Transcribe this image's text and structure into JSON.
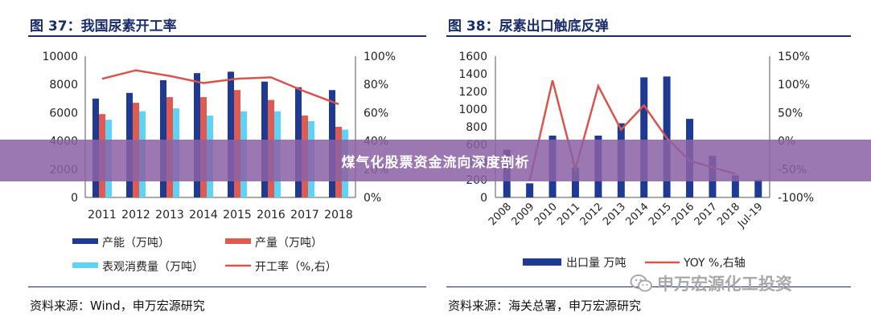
{
  "banner": {
    "text": "煤气化股票资金流向深度剖析"
  },
  "watermark": {
    "text": "申万宏源化工投资",
    "icon": "wechat-icon"
  },
  "colors": {
    "navy": "#1f3a93",
    "red": "#e05a4f",
    "cyan": "#5fd3f5",
    "line": "#d9534f",
    "header": "#1a2d6b"
  },
  "left": {
    "title": "图 37：我国尿素开工率",
    "source": "资料来源：Wind，申万宏源研究"
  },
  "right": {
    "title": "图 38：尿素出口触底反弹",
    "source": "资料来源：海关总署，申万宏源研究"
  },
  "chart_data": [
    {
      "type": "bar",
      "categories": [
        "2011",
        "2012",
        "2013",
        "2014",
        "2015",
        "2016",
        "2017",
        "2018"
      ],
      "y_ticks": [
        "0",
        "2000",
        "4000",
        "6000",
        "8000",
        "10000"
      ],
      "y2_ticks": [
        "0%",
        "20%",
        "40%",
        "60%",
        "80%",
        "100%"
      ],
      "ylim": [
        0,
        10000
      ],
      "y2lim": [
        0,
        100
      ],
      "grid": false,
      "legend_position": "bottom",
      "series": [
        {
          "name": "产能（万吨）",
          "type": "bar",
          "axis": "left",
          "color": "#1f3a93",
          "values": [
            7000,
            7400,
            8300,
            8800,
            8900,
            8200,
            7800,
            7600
          ]
        },
        {
          "name": "产量（万吨）",
          "type": "bar",
          "axis": "left",
          "color": "#e05a4f",
          "values": [
            5900,
            6700,
            7100,
            7100,
            7600,
            6900,
            5800,
            5000
          ]
        },
        {
          "name": "表观消费量（万吨）",
          "type": "bar",
          "axis": "left",
          "color": "#5fd3f5",
          "values": [
            5500,
            6100,
            6300,
            5800,
            6100,
            6100,
            5400,
            4800
          ]
        },
        {
          "name": "开工率（%,右）",
          "type": "line",
          "axis": "right",
          "color": "#d9534f",
          "values": [
            84,
            90,
            86,
            81,
            84,
            85,
            75,
            66
          ]
        }
      ]
    },
    {
      "type": "bar",
      "categories": [
        "2008",
        "2009",
        "2010",
        "2011",
        "2012",
        "2013",
        "2014",
        "2015",
        "2016",
        "2017",
        "2018",
        "Jul-19"
      ],
      "y_ticks": [
        "0",
        "200",
        "400",
        "600",
        "800",
        "1000",
        "1200",
        "1400",
        "1600"
      ],
      "y2_ticks": [
        "-100%",
        "-50%",
        "0%",
        "50%",
        "100%",
        "150%"
      ],
      "ylim": [
        0,
        1600
      ],
      "y2lim": [
        -100,
        150
      ],
      "grid": false,
      "legend_position": "bottom",
      "series": [
        {
          "name": "出口量 万吨",
          "type": "bar",
          "axis": "left",
          "color": "#1f3a93",
          "values": [
            540,
            160,
            700,
            340,
            700,
            840,
            1360,
            1370,
            890,
            470,
            250,
            200
          ]
        },
        {
          "name": "YOY %,右轴",
          "type": "line",
          "axis": "right",
          "color": "#d9534f",
          "values": [
            null,
            -70,
            107,
            -50,
            97,
            20,
            63,
            5,
            -35,
            -47,
            -58,
            null
          ]
        }
      ]
    }
  ]
}
